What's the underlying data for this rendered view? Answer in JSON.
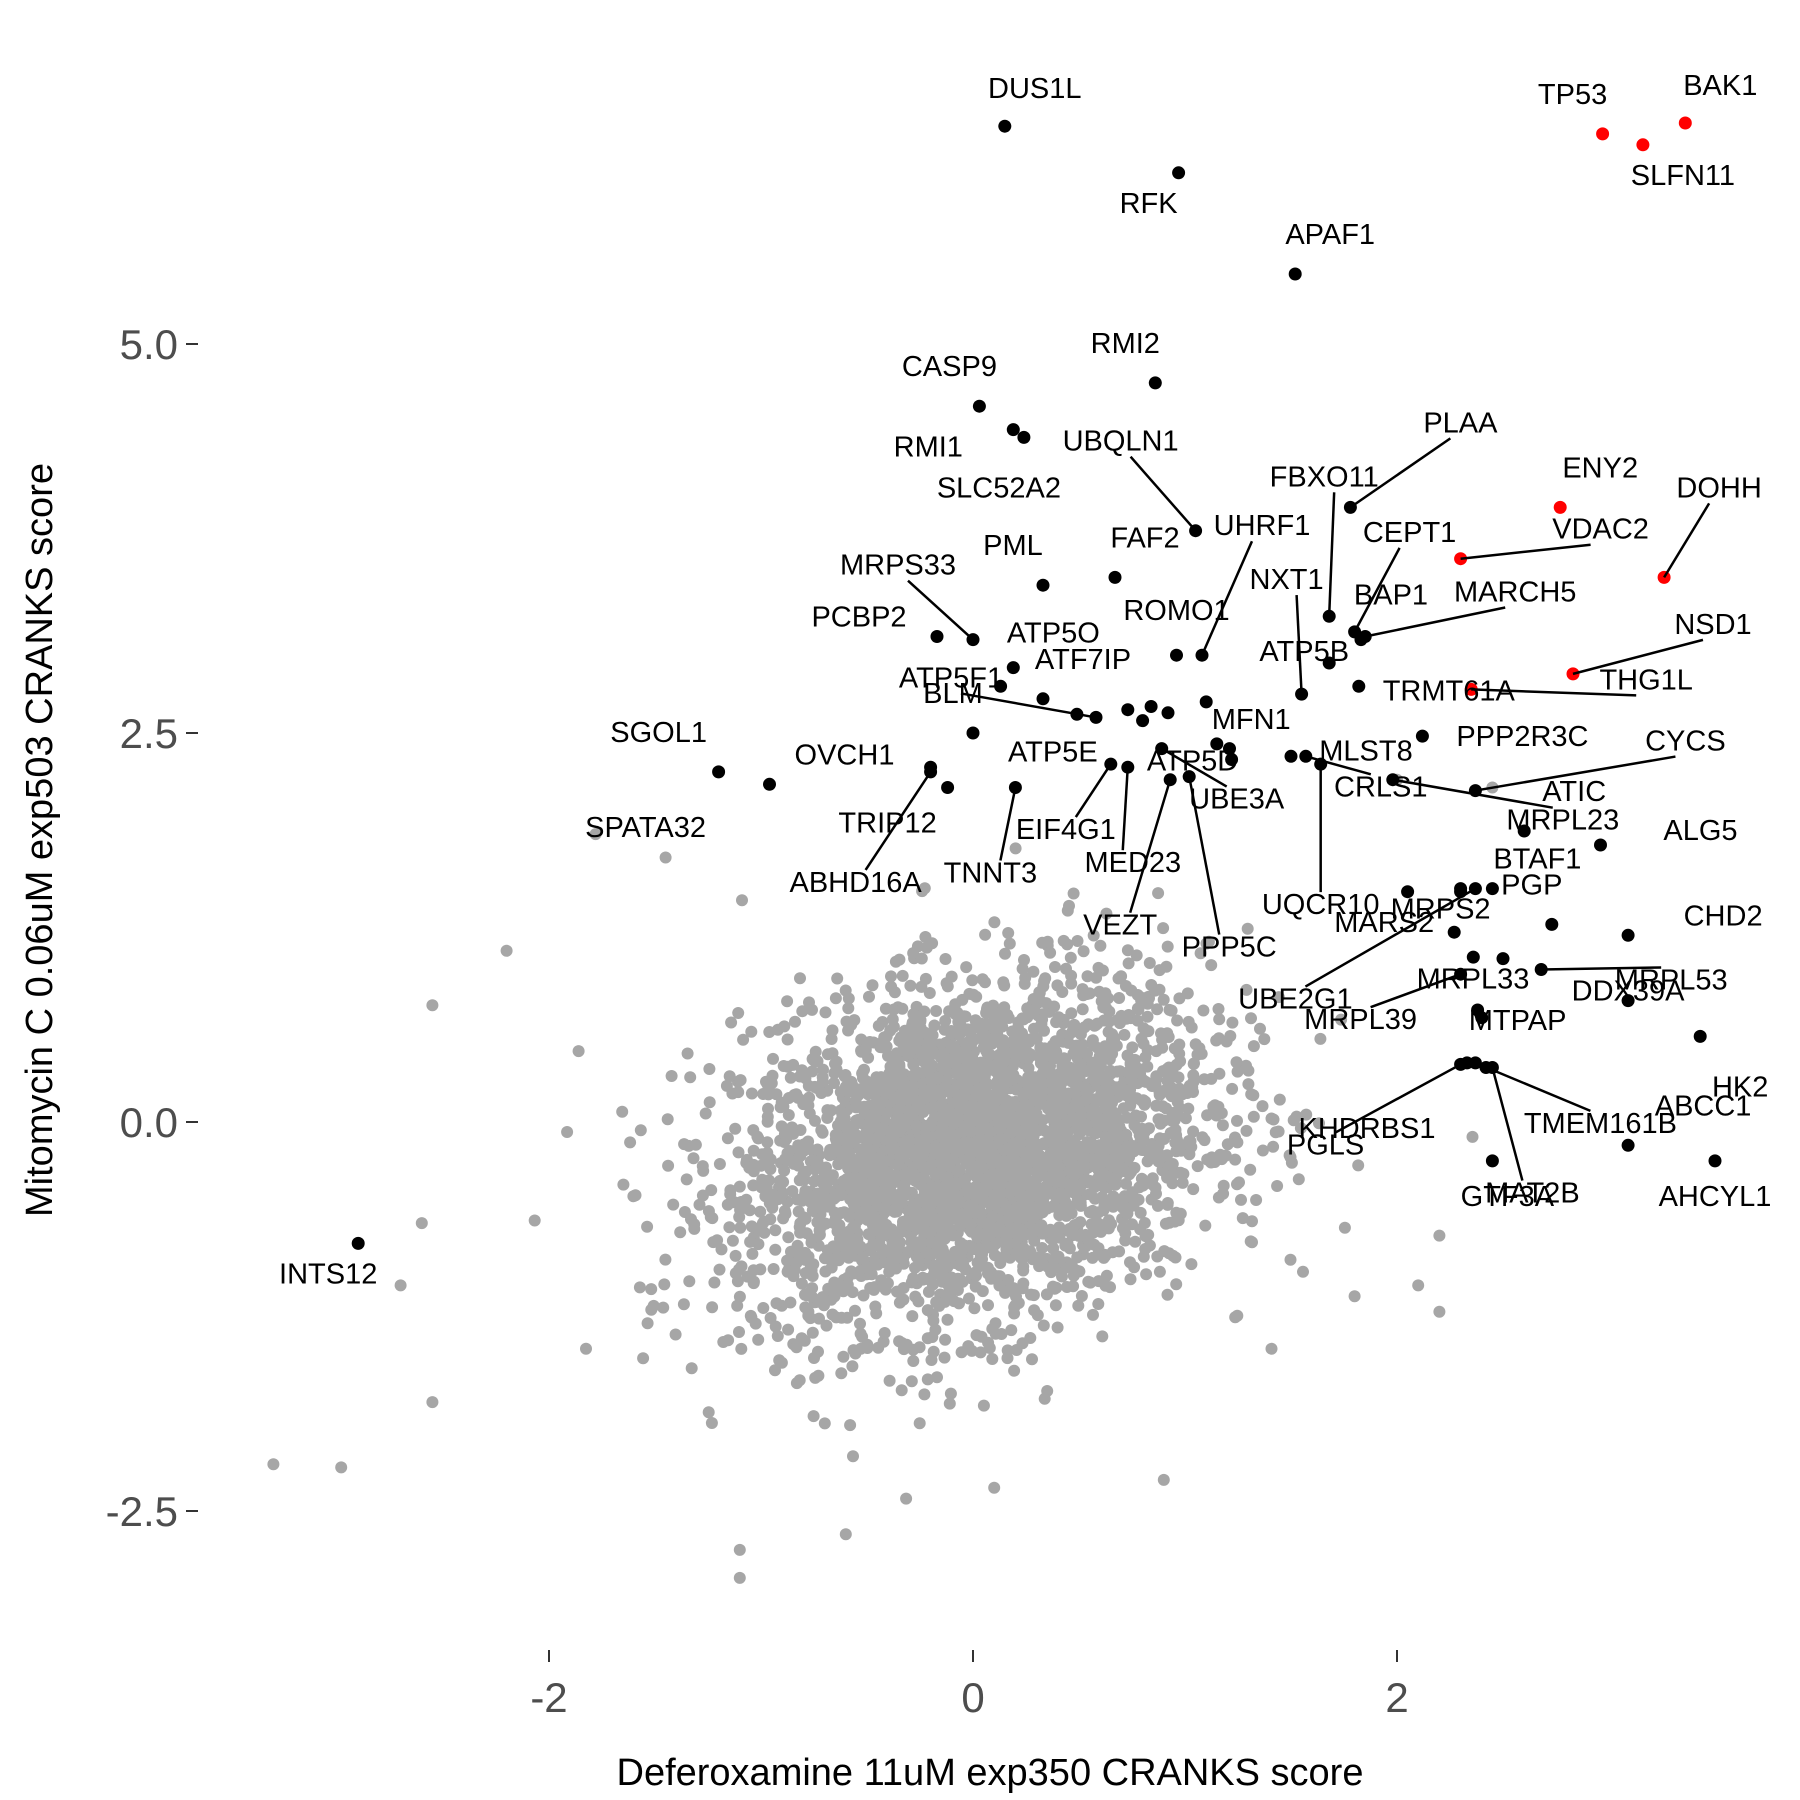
{
  "chart_data": {
    "type": "scatter",
    "title": "",
    "xlabel": "Deferoxamine 11uM exp350 CRANKS score",
    "ylabel": "Mitomycin C 0.06uM exp503 CRANKS score",
    "xlim": [
      -3.4,
      3.65
    ],
    "ylim": [
      -3.2,
      6.75
    ],
    "x_ticks": [
      -2,
      0,
      2
    ],
    "x_tick_labels": [
      "-2",
      "0",
      "2"
    ],
    "y_ticks": [
      -2.5,
      0,
      2.5,
      5
    ],
    "y_tick_labels": [
      "-2.5",
      "0.0",
      "2.5",
      "5.0"
    ],
    "grid": false,
    "legend": "none",
    "colors": {
      "background": "#bdbdbd",
      "labeled": "#000000",
      "highlight": "#ff0000",
      "axis_text": "#4d4d4d"
    },
    "background_cloud": {
      "description_count": 3500,
      "center": [
        0.0,
        -0.2
      ],
      "sd": [
        0.55,
        0.55
      ],
      "correlation": 0.25,
      "outliers": [
        [
          -3.3,
          -2.2
        ],
        [
          -2.98,
          -2.22
        ],
        [
          -2.55,
          -1.8
        ],
        [
          -2.7,
          -1.05
        ],
        [
          -2.6,
          -0.65
        ],
        [
          -2.55,
          0.75
        ],
        [
          -2.2,
          1.1
        ],
        [
          -1.45,
          1.7
        ],
        [
          -1.78,
          1.85
        ],
        [
          -0.6,
          -2.65
        ],
        [
          -1.1,
          -2.93
        ],
        [
          -1.1,
          -2.75
        ],
        [
          0.1,
          -2.35
        ],
        [
          0.9,
          -2.3
        ],
        [
          2.2,
          -0.73
        ],
        [
          2.2,
          -1.22
        ],
        [
          1.8,
          -1.12
        ],
        [
          2.1,
          -1.05
        ],
        [
          2.45,
          2.15
        ],
        [
          2.0,
          2.2
        ]
      ]
    },
    "points": [
      {
        "label": "DUS1L",
        "x": 0.15,
        "y": 6.4,
        "color": "black"
      },
      {
        "label": "RFK",
        "x": 0.97,
        "y": 6.1,
        "color": "black"
      },
      {
        "label": "APAF1",
        "x": 1.52,
        "y": 5.45,
        "color": "black"
      },
      {
        "label": "RMI2",
        "x": 0.86,
        "y": 4.75,
        "color": "black"
      },
      {
        "label": "CASP9",
        "x": 0.03,
        "y": 4.6,
        "color": "black"
      },
      {
        "label": "RMI1",
        "x": 0.19,
        "y": 4.45,
        "color": "black"
      },
      {
        "label": "SLC52A2",
        "x": 0.24,
        "y": 4.4,
        "color": "black"
      },
      {
        "label": "UBQLN1",
        "x": 1.05,
        "y": 3.8,
        "color": "black"
      },
      {
        "label": "PLAA",
        "x": 1.78,
        "y": 3.95,
        "color": "black"
      },
      {
        "label": "FBXO11",
        "x": 1.68,
        "y": 3.25,
        "color": "black"
      },
      {
        "label": "UHRF1",
        "x": 1.08,
        "y": 3.0,
        "color": "black"
      },
      {
        "label": "CEPT1",
        "x": 1.8,
        "y": 3.15,
        "color": "black"
      },
      {
        "label": "MARCH5",
        "x": 1.85,
        "y": 3.12,
        "color": "black"
      },
      {
        "label": "BAP1",
        "x": 1.83,
        "y": 3.1,
        "color": "black"
      },
      {
        "label": "NXT1",
        "x": 1.55,
        "y": 2.75,
        "color": "black"
      },
      {
        "label": "PML",
        "x": 0.33,
        "y": 3.45,
        "color": "black"
      },
      {
        "label": "FAF2",
        "x": 0.67,
        "y": 3.5,
        "color": "black"
      },
      {
        "label": "MRPS33",
        "x": 0.0,
        "y": 3.1,
        "color": "black"
      },
      {
        "label": "PCBP2",
        "x": -0.17,
        "y": 3.12,
        "color": "black"
      },
      {
        "label": "ATP5O",
        "x": 0.19,
        "y": 2.92,
        "color": "black"
      },
      {
        "label": "ROMO1",
        "x": 0.96,
        "y": 3.0,
        "color": "black"
      },
      {
        "label": "ATP5B",
        "x": 1.68,
        "y": 2.95,
        "color": "black"
      },
      {
        "label": "TRMT61A",
        "x": 1.82,
        "y": 2.8,
        "color": "black"
      },
      {
        "label": "ATF7IP",
        "x": 0.33,
        "y": 2.72,
        "color": "black"
      },
      {
        "label": "BLM",
        "x": 0.0,
        "y": 2.5,
        "color": "black"
      },
      {
        "label": "MFN1",
        "x": 1.1,
        "y": 2.7,
        "color": "black"
      },
      {
        "label": "ATP5F1",
        "x": 0.58,
        "y": 2.6,
        "color": "black"
      },
      {
        "label": "ATP5E",
        "x": 0.73,
        "y": 2.65,
        "color": "black"
      },
      {
        "label": "ATP5D",
        "x": 0.8,
        "y": 2.58,
        "color": "black"
      },
      {
        "label": "MLST8",
        "x": 1.5,
        "y": 2.35,
        "color": "black"
      },
      {
        "label": "PPP2R3C",
        "x": 2.12,
        "y": 2.48,
        "color": "black"
      },
      {
        "label": "CRLS1",
        "x": 1.57,
        "y": 2.35,
        "color": "black"
      },
      {
        "label": "UBE3A",
        "x": 0.89,
        "y": 2.4,
        "color": "black"
      },
      {
        "label": "SGOL1",
        "x": -1.2,
        "y": 2.25,
        "color": "black"
      },
      {
        "label": "OVCH1",
        "x": -0.96,
        "y": 2.17,
        "color": "black"
      },
      {
        "label": "SPATA32",
        "x": -0.2,
        "y": 2.28,
        "color": "black"
      },
      {
        "label": "TRIP12",
        "x": -0.12,
        "y": 2.15,
        "color": "black"
      },
      {
        "label": "ABHD16A",
        "x": -0.2,
        "y": 2.25,
        "color": "black"
      },
      {
        "label": "TNNT3",
        "x": 0.2,
        "y": 2.15,
        "color": "black"
      },
      {
        "label": "EIF4G1",
        "x": 0.65,
        "y": 2.3,
        "color": "black"
      },
      {
        "label": "MED23",
        "x": 0.73,
        "y": 2.28,
        "color": "black"
      },
      {
        "label": "VEZT",
        "x": 0.93,
        "y": 2.2,
        "color": "black"
      },
      {
        "label": "PPP5C",
        "x": 1.02,
        "y": 2.22,
        "color": "black"
      },
      {
        "label": "UQCR10",
        "x": 1.64,
        "y": 2.3,
        "color": "black"
      },
      {
        "label": "MRPL23",
        "x": 1.98,
        "y": 2.2,
        "color": "black"
      },
      {
        "label": "CYCS",
        "x": 2.37,
        "y": 2.13,
        "color": "black"
      },
      {
        "label": "ATIC",
        "x": 2.6,
        "y": 1.87,
        "color": "black"
      },
      {
        "label": "ALG5",
        "x": 2.96,
        "y": 1.78,
        "color": "black"
      },
      {
        "label": "BTAF1",
        "x": 2.45,
        "y": 1.5,
        "color": "black"
      },
      {
        "label": "MRPS2",
        "x": 2.3,
        "y": 1.5,
        "color": "black"
      },
      {
        "label": "UBE2G1",
        "x": 2.37,
        "y": 1.5,
        "color": "black"
      },
      {
        "label": "PGP",
        "x": 2.73,
        "y": 1.27,
        "color": "black"
      },
      {
        "label": "CHD2",
        "x": 3.09,
        "y": 1.2,
        "color": "black"
      },
      {
        "label": "MARS2",
        "x": 2.27,
        "y": 1.22,
        "color": "black"
      },
      {
        "label": "MRPL33",
        "x": 2.5,
        "y": 1.05,
        "color": "black"
      },
      {
        "label": "MRPL53",
        "x": 2.68,
        "y": 0.98,
        "color": "black"
      },
      {
        "label": "MRPL39",
        "x": 2.3,
        "y": 0.95,
        "color": "black"
      },
      {
        "label": "MTPAP",
        "x": 2.38,
        "y": 0.72,
        "color": "black"
      },
      {
        "label": "DDX39A",
        "x": 3.09,
        "y": 0.78,
        "color": "black"
      },
      {
        "label": "HK2",
        "x": 3.43,
        "y": 0.55,
        "color": "black"
      },
      {
        "label": "KHDRBS1",
        "x": 2.33,
        "y": 0.38,
        "color": "black"
      },
      {
        "label": "TMEM161B",
        "x": 2.37,
        "y": 0.38,
        "color": "black"
      },
      {
        "label": "PGLS",
        "x": 2.3,
        "y": 0.37,
        "color": "black"
      },
      {
        "label": "MAT2B",
        "x": 2.45,
        "y": 0.35,
        "color": "black"
      },
      {
        "label": "GTF3A",
        "x": 2.45,
        "y": -0.25,
        "color": "black"
      },
      {
        "label": "ABCC1",
        "x": 3.09,
        "y": -0.15,
        "color": "black"
      },
      {
        "label": "AHCYL1",
        "x": 3.5,
        "y": -0.25,
        "color": "black"
      },
      {
        "label": "INTS12",
        "x": -2.9,
        "y": -0.78,
        "color": "black"
      },
      {
        "label": "TP53",
        "x": 2.97,
        "y": 6.35,
        "color": "red"
      },
      {
        "label": "BAK1",
        "x": 3.36,
        "y": 6.42,
        "color": "red"
      },
      {
        "label": "SLFN11",
        "x": 3.16,
        "y": 6.28,
        "color": "red"
      },
      {
        "label": "ENY2",
        "x": 2.77,
        "y": 3.95,
        "color": "red"
      },
      {
        "label": "DOHH",
        "x": 3.26,
        "y": 3.5,
        "color": "red"
      },
      {
        "label": "VDAC2",
        "x": 2.3,
        "y": 3.62,
        "color": "red"
      },
      {
        "label": "NSD1",
        "x": 2.83,
        "y": 2.88,
        "color": "red"
      },
      {
        "label": "THG1L",
        "x": 2.35,
        "y": 2.78,
        "color": "red"
      }
    ],
    "extra_black_points": [
      [
        0.13,
        2.8
      ],
      [
        0.49,
        2.62
      ],
      [
        0.84,
        2.67
      ],
      [
        1.21,
        2.4
      ],
      [
        1.22,
        2.33
      ],
      [
        0.92,
        2.63
      ],
      [
        1.15,
        2.43
      ],
      [
        2.05,
        1.48
      ],
      [
        2.36,
        1.06
      ],
      [
        2.4,
        0.67
      ],
      [
        2.42,
        0.35
      ],
      [
        2.3,
        1.48
      ]
    ]
  }
}
